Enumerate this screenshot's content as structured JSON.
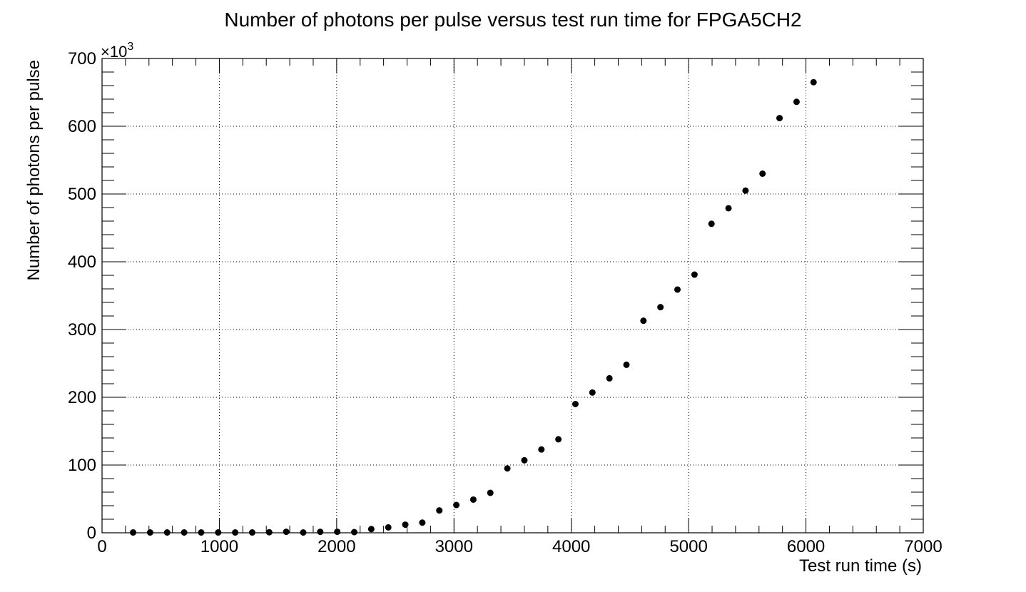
{
  "chart_data": {
    "type": "scatter",
    "title": "Number of photons per pulse versus test run time for FPGA5CH2",
    "xlabel": "Test run time (s)",
    "ylabel": "Number of photons per pulse",
    "y_multiplier_label": "×10",
    "y_multiplier_exponent": "3",
    "xlim": [
      0,
      7000
    ],
    "ylim": [
      0,
      700
    ],
    "x_ticks": [
      0,
      1000,
      2000,
      3000,
      4000,
      5000,
      6000,
      7000
    ],
    "y_ticks": [
      0,
      100,
      200,
      300,
      400,
      500,
      600,
      700
    ],
    "x_minor_step": 200,
    "y_minor_step": 20,
    "grid": true,
    "marker_color": "#000000",
    "series": [
      {
        "x": [
          265,
          410,
          555,
          700,
          845,
          990,
          1135,
          1280,
          1425,
          1570,
          1715,
          1860,
          2005,
          2150,
          2295,
          2440,
          2585,
          2730,
          2875,
          3020,
          3165,
          3310,
          3455,
          3600,
          3745,
          3890,
          4035,
          4180,
          4325,
          4470,
          4615,
          4760,
          4905,
          5050,
          5195,
          5340,
          5485,
          5630,
          5775,
          5920,
          6065
        ],
        "y": [
          0.5,
          0.5,
          0.5,
          0.5,
          0.5,
          0.5,
          0.5,
          0.5,
          0.8,
          1.5,
          0.5,
          1.5,
          1.5,
          1,
          5.5,
          8,
          12,
          15,
          33,
          41,
          49,
          59,
          95,
          107,
          123,
          138,
          190,
          207,
          228,
          248,
          313,
          333,
          359,
          381,
          456,
          479,
          505,
          530,
          612,
          636,
          665
        ]
      }
    ]
  }
}
